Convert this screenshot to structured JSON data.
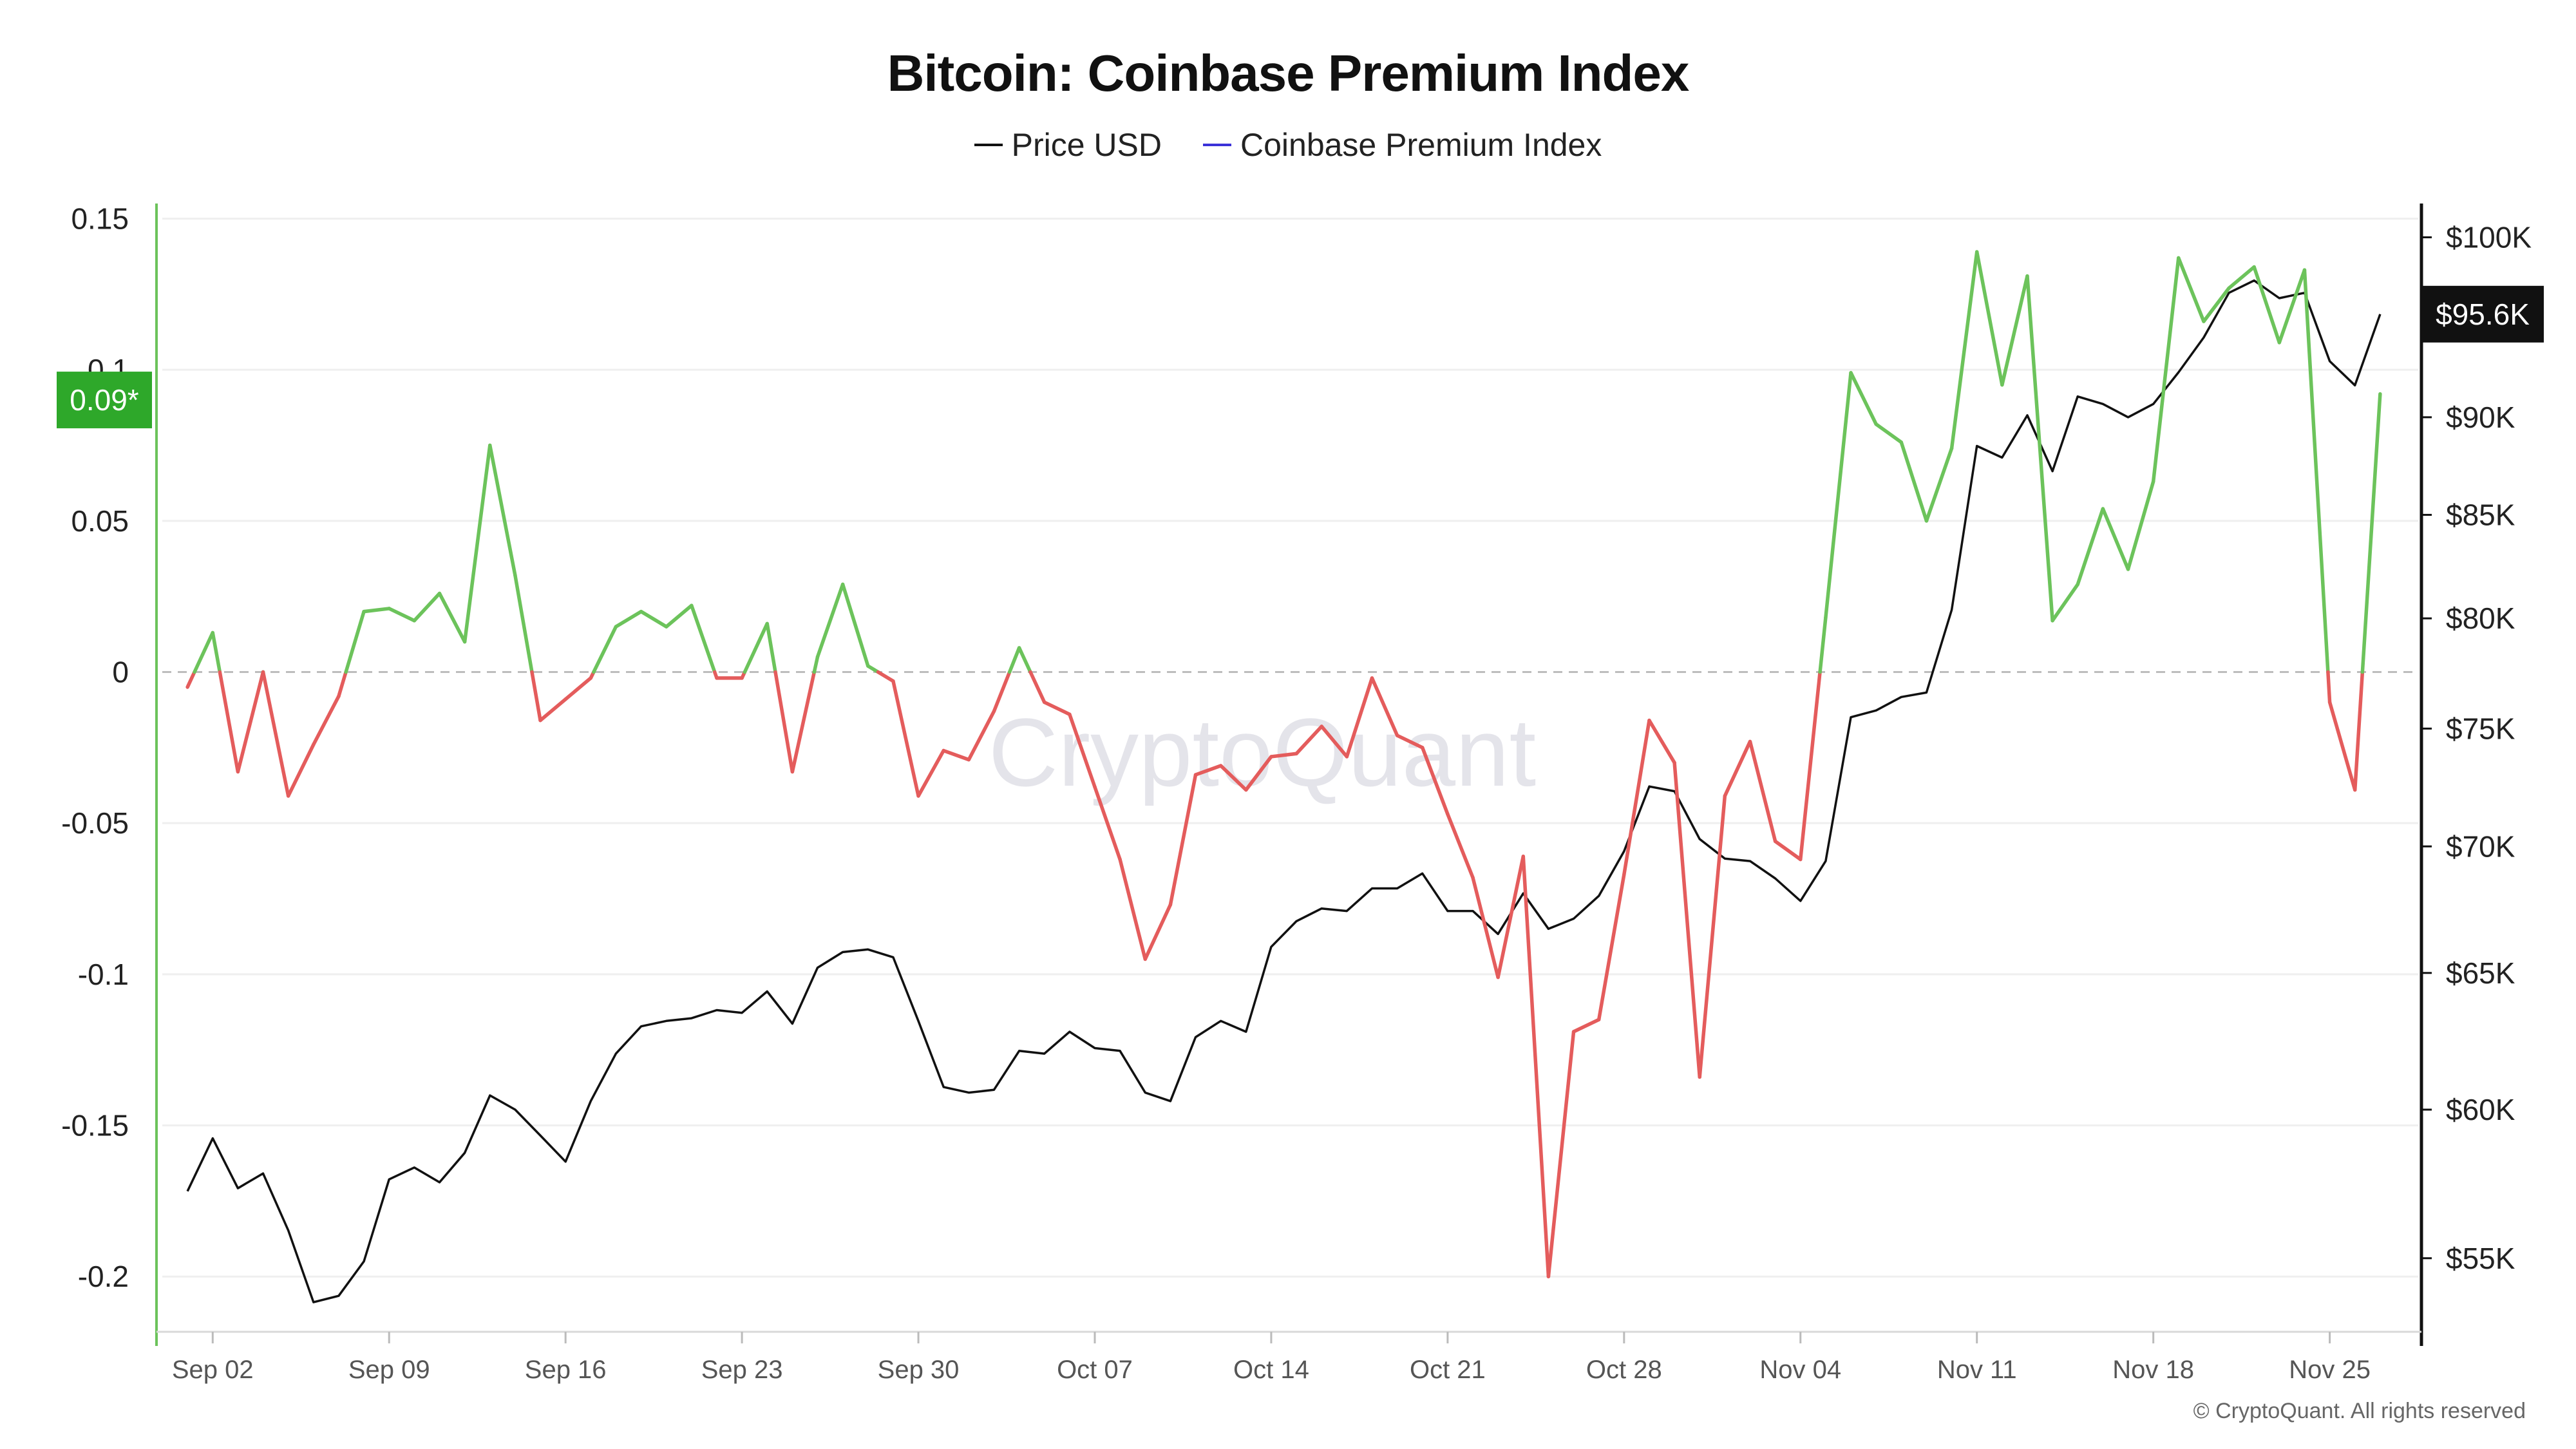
{
  "title": "Bitcoin: Coinbase Premium Index",
  "legend": {
    "price_label": "Price USD",
    "premium_label": "Coinbase Premium Index"
  },
  "colors": {
    "price_line": "#111111",
    "legend_premium": "#3b32d9",
    "positive": "#6cc35b",
    "negative": "#e45c5c",
    "left_axis": "#6cc35b",
    "current_badge_left": "#2ea82a",
    "current_badge_right": "#111111"
  },
  "watermark": "CryptoQuant",
  "copyright": "© CryptoQuant. All rights reserved",
  "chart_data": {
    "type": "line",
    "x_ticks": [
      "Sep 02",
      "Sep 09",
      "Sep 16",
      "Sep 23",
      "Sep 30",
      "Oct 07",
      "Oct 14",
      "Oct 21",
      "Oct 28",
      "Nov 04",
      "Nov 11",
      "Nov 18",
      "Nov 25"
    ],
    "left_axis": {
      "ticks": [
        "0.15",
        "0.1",
        "0.05",
        "0",
        "-0.05",
        "-0.1",
        "-0.15",
        "-0.2"
      ],
      "tick_values": [
        0.15,
        0.1,
        0.05,
        0,
        -0.05,
        -0.1,
        -0.15,
        -0.2
      ],
      "ylim": [
        -0.217,
        0.155
      ]
    },
    "right_axis": {
      "ticks": [
        "$100K",
        "$90K",
        "$85K",
        "$80K",
        "$75K",
        "$70K",
        "$65K",
        "$60K",
        "$55K"
      ],
      "tick_values": [
        100000,
        90000,
        85000,
        80000,
        75000,
        70000,
        65000,
        60000,
        55000
      ],
      "scale": "log",
      "ylim": [
        52800,
        102000
      ]
    },
    "current_premium_label": "0.09*",
    "current_premium_value": 0.09,
    "current_price_label": "$95.6K",
    "current_price_value": 95600,
    "series": [
      {
        "name": "Coinbase Premium Index",
        "x": [
          "2024-09-01",
          "2024-09-02",
          "2024-09-03",
          "2024-09-04",
          "2024-09-05",
          "2024-09-06",
          "2024-09-07",
          "2024-09-08",
          "2024-09-09",
          "2024-09-10",
          "2024-09-11",
          "2024-09-12",
          "2024-09-13",
          "2024-09-14",
          "2024-09-15",
          "2024-09-16",
          "2024-09-17",
          "2024-09-18",
          "2024-09-19",
          "2024-09-20",
          "2024-09-21",
          "2024-09-22",
          "2024-09-23",
          "2024-09-24",
          "2024-09-25",
          "2024-09-26",
          "2024-09-27",
          "2024-09-28",
          "2024-09-29",
          "2024-09-30",
          "2024-10-01",
          "2024-10-02",
          "2024-10-03",
          "2024-10-04",
          "2024-10-05",
          "2024-10-06",
          "2024-10-07",
          "2024-10-08",
          "2024-10-09",
          "2024-10-10",
          "2024-10-11",
          "2024-10-12",
          "2024-10-13",
          "2024-10-14",
          "2024-10-15",
          "2024-10-16",
          "2024-10-17",
          "2024-10-18",
          "2024-10-19",
          "2024-10-20",
          "2024-10-21",
          "2024-10-22",
          "2024-10-23",
          "2024-10-24",
          "2024-10-25",
          "2024-10-26",
          "2024-10-27",
          "2024-10-28",
          "2024-10-29",
          "2024-10-30",
          "2024-10-31",
          "2024-11-01",
          "2024-11-02",
          "2024-11-03",
          "2024-11-04",
          "2024-11-05",
          "2024-11-06",
          "2024-11-07",
          "2024-11-08",
          "2024-11-09",
          "2024-11-10",
          "2024-11-11",
          "2024-11-12",
          "2024-11-13",
          "2024-11-14",
          "2024-11-15",
          "2024-11-16",
          "2024-11-17",
          "2024-11-18",
          "2024-11-19",
          "2024-11-20",
          "2024-11-21",
          "2024-11-22",
          "2024-11-23",
          "2024-11-24",
          "2024-11-25",
          "2024-11-26",
          "2024-11-27"
        ],
        "values": [
          -0.005,
          0.013,
          -0.033,
          0.0,
          -0.041,
          -0.024,
          -0.008,
          0.02,
          0.021,
          0.017,
          0.026,
          0.01,
          0.075,
          0.032,
          -0.016,
          -0.009,
          -0.002,
          0.015,
          0.02,
          0.015,
          0.022,
          -0.002,
          -0.002,
          0.016,
          -0.033,
          0.005,
          0.029,
          0.002,
          -0.003,
          -0.041,
          -0.026,
          -0.029,
          -0.013,
          0.008,
          -0.01,
          -0.014,
          -0.038,
          -0.062,
          -0.095,
          -0.077,
          -0.034,
          -0.031,
          -0.039,
          -0.028,
          -0.027,
          -0.018,
          -0.028,
          -0.002,
          -0.021,
          -0.025,
          -0.047,
          -0.068,
          -0.101,
          -0.061,
          -0.2,
          -0.119,
          -0.115,
          -0.067,
          -0.016,
          -0.03,
          -0.134,
          -0.041,
          -0.023,
          -0.056,
          -0.062,
          0.018,
          0.099,
          0.082,
          0.076,
          0.05,
          0.074,
          0.139,
          0.095,
          0.131,
          0.017,
          0.029,
          0.054,
          0.034,
          0.063,
          0.137,
          0.116,
          0.127,
          0.134,
          0.109,
          0.133,
          -0.01,
          -0.039,
          0.092
        ]
      },
      {
        "name": "Price USD",
        "x": [
          "2024-09-01",
          "2024-09-02",
          "2024-09-03",
          "2024-09-04",
          "2024-09-05",
          "2024-09-06",
          "2024-09-07",
          "2024-09-08",
          "2024-09-09",
          "2024-09-10",
          "2024-09-11",
          "2024-09-12",
          "2024-09-13",
          "2024-09-14",
          "2024-09-15",
          "2024-09-16",
          "2024-09-17",
          "2024-09-18",
          "2024-09-19",
          "2024-09-20",
          "2024-09-21",
          "2024-09-22",
          "2024-09-23",
          "2024-09-24",
          "2024-09-25",
          "2024-09-26",
          "2024-09-27",
          "2024-09-28",
          "2024-09-29",
          "2024-09-30",
          "2024-10-01",
          "2024-10-02",
          "2024-10-03",
          "2024-10-04",
          "2024-10-05",
          "2024-10-06",
          "2024-10-07",
          "2024-10-08",
          "2024-10-09",
          "2024-10-10",
          "2024-10-11",
          "2024-10-12",
          "2024-10-13",
          "2024-10-14",
          "2024-10-15",
          "2024-10-16",
          "2024-10-17",
          "2024-10-18",
          "2024-10-19",
          "2024-10-20",
          "2024-10-21",
          "2024-10-22",
          "2024-10-23",
          "2024-10-24",
          "2024-10-25",
          "2024-10-26",
          "2024-10-27",
          "2024-10-28",
          "2024-10-29",
          "2024-10-30",
          "2024-10-31",
          "2024-11-01",
          "2024-11-02",
          "2024-11-03",
          "2024-11-04",
          "2024-11-05",
          "2024-11-06",
          "2024-11-07",
          "2024-11-08",
          "2024-11-09",
          "2024-11-10",
          "2024-11-11",
          "2024-11-12",
          "2024-11-13",
          "2024-11-14",
          "2024-11-15",
          "2024-11-16",
          "2024-11-17",
          "2024-11-18",
          "2024-11-19",
          "2024-11-20",
          "2024-11-21",
          "2024-11-22",
          "2024-11-23",
          "2024-11-24",
          "2024-11-25",
          "2024-11-26",
          "2024-11-27"
        ],
        "values": [
          57200,
          59000,
          57300,
          57800,
          55900,
          53600,
          53800,
          54900,
          57600,
          58000,
          57500,
          58500,
          60500,
          60000,
          59100,
          58200,
          60300,
          62000,
          63000,
          63200,
          63300,
          63600,
          63500,
          64300,
          63100,
          65200,
          65800,
          65900,
          65600,
          63200,
          60800,
          60600,
          60700,
          62100,
          62000,
          62800,
          62200,
          62100,
          60600,
          60300,
          62600,
          63200,
          62800,
          66000,
          67000,
          67500,
          67400,
          68300,
          68300,
          68900,
          67400,
          67400,
          66500,
          68100,
          66700,
          67100,
          68000,
          69800,
          72500,
          72300,
          70300,
          69500,
          69400,
          68700,
          67800,
          69400,
          75500,
          75800,
          76400,
          76600,
          80400,
          88500,
          87900,
          90100,
          87200,
          91100,
          90700,
          90000,
          90700,
          92400,
          94300,
          96800,
          97500,
          96500,
          96800,
          93000,
          91700,
          95600
        ]
      }
    ]
  }
}
